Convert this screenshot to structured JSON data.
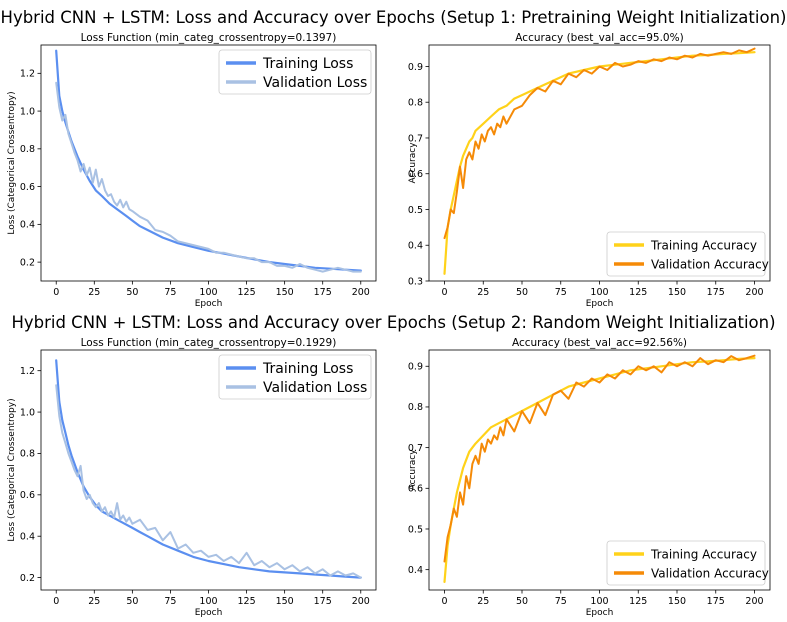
{
  "suptitles": [
    "Hybrid CNN + LSTM: Loss and Accuracy over Epochs (Setup 1: Pretraining Weight Initialization)",
    "Hybrid CNN + LSTM: Loss and Accuracy over Epochs (Setup 2: Random Weight Initialization)"
  ],
  "colors": {
    "training_loss": "#5b8ff0",
    "validation_loss": "#a9c1e3",
    "training_accuracy": "#ffd21a",
    "validation_accuracy": "#f58a07"
  },
  "chart_data": [
    {
      "type": "line",
      "title": "Loss Function (min_categ_crossentropy=0.1397)",
      "xlabel": "Epoch",
      "ylabel": "Loss (Categorical Crossentropy)",
      "xlim": [
        -10,
        210
      ],
      "ylim": [
        0.1,
        1.35
      ],
      "xticks": [
        0,
        25,
        50,
        75,
        100,
        125,
        150,
        175,
        200
      ],
      "yticks": [
        0.2,
        0.4,
        0.6,
        0.8,
        1.0,
        1.2
      ],
      "ytick_labels": [
        "0.2",
        "0.4",
        "0.6",
        "0.8",
        "1.0",
        "1.2"
      ],
      "legend": "top-right",
      "grid": false,
      "series": [
        {
          "name": "Training Loss",
          "color": "#5b8ff0",
          "x": [
            0,
            2,
            4,
            6,
            8,
            10,
            14,
            18,
            22,
            26,
            30,
            35,
            40,
            45,
            50,
            55,
            60,
            70,
            80,
            90,
            100,
            110,
            120,
            130,
            140,
            150,
            160,
            170,
            180,
            190,
            200
          ],
          "y": [
            1.32,
            1.08,
            1.0,
            0.94,
            0.89,
            0.84,
            0.76,
            0.69,
            0.63,
            0.58,
            0.55,
            0.51,
            0.48,
            0.45,
            0.42,
            0.39,
            0.37,
            0.33,
            0.3,
            0.28,
            0.26,
            0.245,
            0.23,
            0.215,
            0.2,
            0.19,
            0.18,
            0.17,
            0.165,
            0.16,
            0.155
          ]
        },
        {
          "name": "Validation Loss",
          "color": "#a9c1e3",
          "x": [
            0,
            2,
            4,
            6,
            8,
            10,
            12,
            14,
            16,
            18,
            20,
            22,
            24,
            26,
            28,
            30,
            32,
            34,
            36,
            38,
            40,
            42,
            44,
            46,
            48,
            50,
            55,
            60,
            65,
            70,
            75,
            80,
            85,
            90,
            95,
            100,
            105,
            110,
            115,
            120,
            125,
            130,
            135,
            140,
            145,
            150,
            155,
            160,
            165,
            170,
            175,
            180,
            185,
            190,
            195,
            200
          ],
          "y": [
            1.15,
            1.02,
            0.95,
            0.98,
            0.88,
            0.83,
            0.78,
            0.74,
            0.68,
            0.72,
            0.66,
            0.7,
            0.62,
            0.69,
            0.6,
            0.64,
            0.58,
            0.55,
            0.56,
            0.52,
            0.5,
            0.53,
            0.49,
            0.52,
            0.48,
            0.47,
            0.44,
            0.42,
            0.37,
            0.36,
            0.34,
            0.31,
            0.3,
            0.29,
            0.28,
            0.27,
            0.25,
            0.25,
            0.24,
            0.23,
            0.22,
            0.22,
            0.2,
            0.2,
            0.18,
            0.18,
            0.17,
            0.19,
            0.17,
            0.16,
            0.15,
            0.16,
            0.17,
            0.16,
            0.15,
            0.15
          ]
        }
      ]
    },
    {
      "type": "line",
      "title": "Accuracy (best_val_acc=95.0%)",
      "xlabel": "Epoch",
      "ylabel": "Accuracy",
      "xlim": [
        -10,
        210
      ],
      "ylim": [
        0.3,
        0.96
      ],
      "xticks": [
        0,
        25,
        50,
        75,
        100,
        125,
        150,
        175,
        200
      ],
      "yticks": [
        0.3,
        0.4,
        0.5,
        0.6,
        0.7,
        0.8,
        0.9
      ],
      "ytick_labels": [
        "0.3",
        "0.4",
        "0.5",
        "0.6",
        "0.7",
        "0.8",
        "0.9"
      ],
      "legend": "lower-right",
      "grid": false,
      "series": [
        {
          "name": "Training Accuracy",
          "color": "#ffd21a",
          "x": [
            0,
            2,
            4,
            6,
            8,
            10,
            12,
            14,
            16,
            18,
            20,
            25,
            30,
            35,
            40,
            45,
            50,
            60,
            70,
            80,
            90,
            100,
            110,
            120,
            130,
            140,
            150,
            160,
            170,
            180,
            190,
            200
          ],
          "y": [
            0.32,
            0.45,
            0.5,
            0.54,
            0.58,
            0.62,
            0.65,
            0.67,
            0.69,
            0.7,
            0.72,
            0.74,
            0.76,
            0.78,
            0.79,
            0.81,
            0.82,
            0.84,
            0.86,
            0.88,
            0.89,
            0.9,
            0.905,
            0.91,
            0.915,
            0.92,
            0.925,
            0.93,
            0.932,
            0.935,
            0.937,
            0.94
          ]
        },
        {
          "name": "Validation Accuracy",
          "color": "#f58a07",
          "x": [
            0,
            2,
            4,
            6,
            8,
            10,
            12,
            14,
            16,
            18,
            20,
            22,
            24,
            26,
            28,
            30,
            32,
            34,
            36,
            38,
            40,
            45,
            50,
            55,
            60,
            65,
            70,
            75,
            80,
            85,
            90,
            95,
            100,
            105,
            110,
            115,
            120,
            125,
            130,
            135,
            140,
            145,
            150,
            155,
            160,
            165,
            170,
            175,
            180,
            185,
            190,
            195,
            200
          ],
          "y": [
            0.42,
            0.45,
            0.5,
            0.49,
            0.55,
            0.62,
            0.56,
            0.64,
            0.66,
            0.64,
            0.69,
            0.67,
            0.71,
            0.69,
            0.72,
            0.73,
            0.71,
            0.74,
            0.73,
            0.76,
            0.74,
            0.78,
            0.79,
            0.82,
            0.84,
            0.83,
            0.86,
            0.85,
            0.88,
            0.87,
            0.89,
            0.88,
            0.9,
            0.89,
            0.91,
            0.9,
            0.905,
            0.915,
            0.91,
            0.92,
            0.915,
            0.925,
            0.92,
            0.93,
            0.925,
            0.935,
            0.93,
            0.935,
            0.94,
            0.935,
            0.945,
            0.94,
            0.95
          ]
        }
      ]
    },
    {
      "type": "line",
      "title": "Loss Function (min_categ_crossentropy=0.1929)",
      "xlabel": "Epoch",
      "ylabel": "Loss (Categorical Crossentropy)",
      "xlim": [
        -10,
        210
      ],
      "ylim": [
        0.14,
        1.3
      ],
      "xticks": [
        0,
        25,
        50,
        75,
        100,
        125,
        150,
        175,
        200
      ],
      "yticks": [
        0.2,
        0.4,
        0.6,
        0.8,
        1.0,
        1.2
      ],
      "ytick_labels": [
        "0.2",
        "0.4",
        "0.6",
        "0.8",
        "1.0",
        "1.2"
      ],
      "legend": "top-right",
      "grid": false,
      "series": [
        {
          "name": "Training Loss",
          "color": "#5b8ff0",
          "x": [
            0,
            2,
            4,
            6,
            8,
            10,
            14,
            18,
            22,
            26,
            30,
            35,
            40,
            45,
            50,
            55,
            60,
            70,
            80,
            90,
            100,
            110,
            120,
            130,
            140,
            150,
            160,
            170,
            180,
            190,
            200
          ],
          "y": [
            1.25,
            1.05,
            0.96,
            0.9,
            0.84,
            0.79,
            0.71,
            0.64,
            0.59,
            0.55,
            0.52,
            0.5,
            0.48,
            0.46,
            0.44,
            0.42,
            0.4,
            0.36,
            0.33,
            0.3,
            0.28,
            0.265,
            0.25,
            0.24,
            0.23,
            0.225,
            0.22,
            0.215,
            0.21,
            0.205,
            0.2
          ]
        },
        {
          "name": "Validation Loss",
          "color": "#a9c1e3",
          "x": [
            0,
            2,
            4,
            6,
            8,
            10,
            12,
            14,
            16,
            18,
            20,
            22,
            24,
            26,
            28,
            30,
            32,
            34,
            36,
            38,
            40,
            42,
            44,
            46,
            48,
            50,
            55,
            60,
            65,
            70,
            75,
            80,
            85,
            90,
            95,
            100,
            105,
            110,
            115,
            120,
            125,
            130,
            135,
            140,
            145,
            150,
            155,
            160,
            165,
            170,
            175,
            180,
            185,
            190,
            195,
            200
          ],
          "y": [
            1.13,
            0.98,
            0.9,
            0.85,
            0.8,
            0.76,
            0.72,
            0.69,
            0.74,
            0.62,
            0.58,
            0.6,
            0.56,
            0.54,
            0.56,
            0.52,
            0.54,
            0.5,
            0.52,
            0.49,
            0.56,
            0.48,
            0.5,
            0.47,
            0.49,
            0.46,
            0.48,
            0.43,
            0.44,
            0.38,
            0.42,
            0.34,
            0.36,
            0.32,
            0.33,
            0.3,
            0.31,
            0.28,
            0.3,
            0.27,
            0.32,
            0.26,
            0.28,
            0.25,
            0.27,
            0.24,
            0.26,
            0.23,
            0.25,
            0.22,
            0.24,
            0.21,
            0.23,
            0.21,
            0.22,
            0.2
          ]
        }
      ]
    },
    {
      "type": "line",
      "title": "Accuracy (best_val_acc=92.56%)",
      "xlabel": "Epoch",
      "ylabel": "Accuracy",
      "xlim": [
        -10,
        210
      ],
      "ylim": [
        0.35,
        0.94
      ],
      "xticks": [
        0,
        25,
        50,
        75,
        100,
        125,
        150,
        175,
        200
      ],
      "yticks": [
        0.4,
        0.5,
        0.6,
        0.7,
        0.8,
        0.9
      ],
      "ytick_labels": [
        "0.4",
        "0.5",
        "0.6",
        "0.7",
        "0.8",
        "0.9"
      ],
      "legend": "lower-right",
      "grid": false,
      "series": [
        {
          "name": "Training Accuracy",
          "color": "#ffd21a",
          "x": [
            0,
            2,
            4,
            6,
            8,
            10,
            12,
            14,
            16,
            18,
            20,
            25,
            30,
            35,
            40,
            45,
            50,
            60,
            70,
            80,
            90,
            100,
            110,
            120,
            130,
            140,
            150,
            160,
            170,
            180,
            190,
            200
          ],
          "y": [
            0.37,
            0.46,
            0.51,
            0.55,
            0.59,
            0.62,
            0.65,
            0.67,
            0.69,
            0.7,
            0.71,
            0.73,
            0.75,
            0.76,
            0.77,
            0.78,
            0.79,
            0.81,
            0.83,
            0.85,
            0.86,
            0.87,
            0.88,
            0.89,
            0.895,
            0.9,
            0.905,
            0.91,
            0.912,
            0.915,
            0.918,
            0.92
          ]
        },
        {
          "name": "Validation Accuracy",
          "color": "#f58a07",
          "x": [
            0,
            2,
            4,
            6,
            8,
            10,
            12,
            14,
            16,
            18,
            20,
            22,
            24,
            26,
            28,
            30,
            32,
            34,
            36,
            38,
            40,
            45,
            50,
            55,
            60,
            65,
            70,
            75,
            80,
            85,
            90,
            95,
            100,
            105,
            110,
            115,
            120,
            125,
            130,
            135,
            140,
            145,
            150,
            155,
            160,
            165,
            170,
            175,
            180,
            185,
            190,
            195,
            200
          ],
          "y": [
            0.42,
            0.48,
            0.51,
            0.55,
            0.53,
            0.59,
            0.56,
            0.63,
            0.6,
            0.66,
            0.68,
            0.66,
            0.71,
            0.69,
            0.72,
            0.71,
            0.73,
            0.72,
            0.75,
            0.73,
            0.77,
            0.74,
            0.79,
            0.76,
            0.81,
            0.78,
            0.83,
            0.84,
            0.82,
            0.86,
            0.85,
            0.87,
            0.86,
            0.88,
            0.87,
            0.89,
            0.88,
            0.9,
            0.89,
            0.9,
            0.885,
            0.91,
            0.9,
            0.91,
            0.9,
            0.92,
            0.905,
            0.915,
            0.91,
            0.925,
            0.915,
            0.92,
            0.926
          ]
        }
      ]
    }
  ]
}
